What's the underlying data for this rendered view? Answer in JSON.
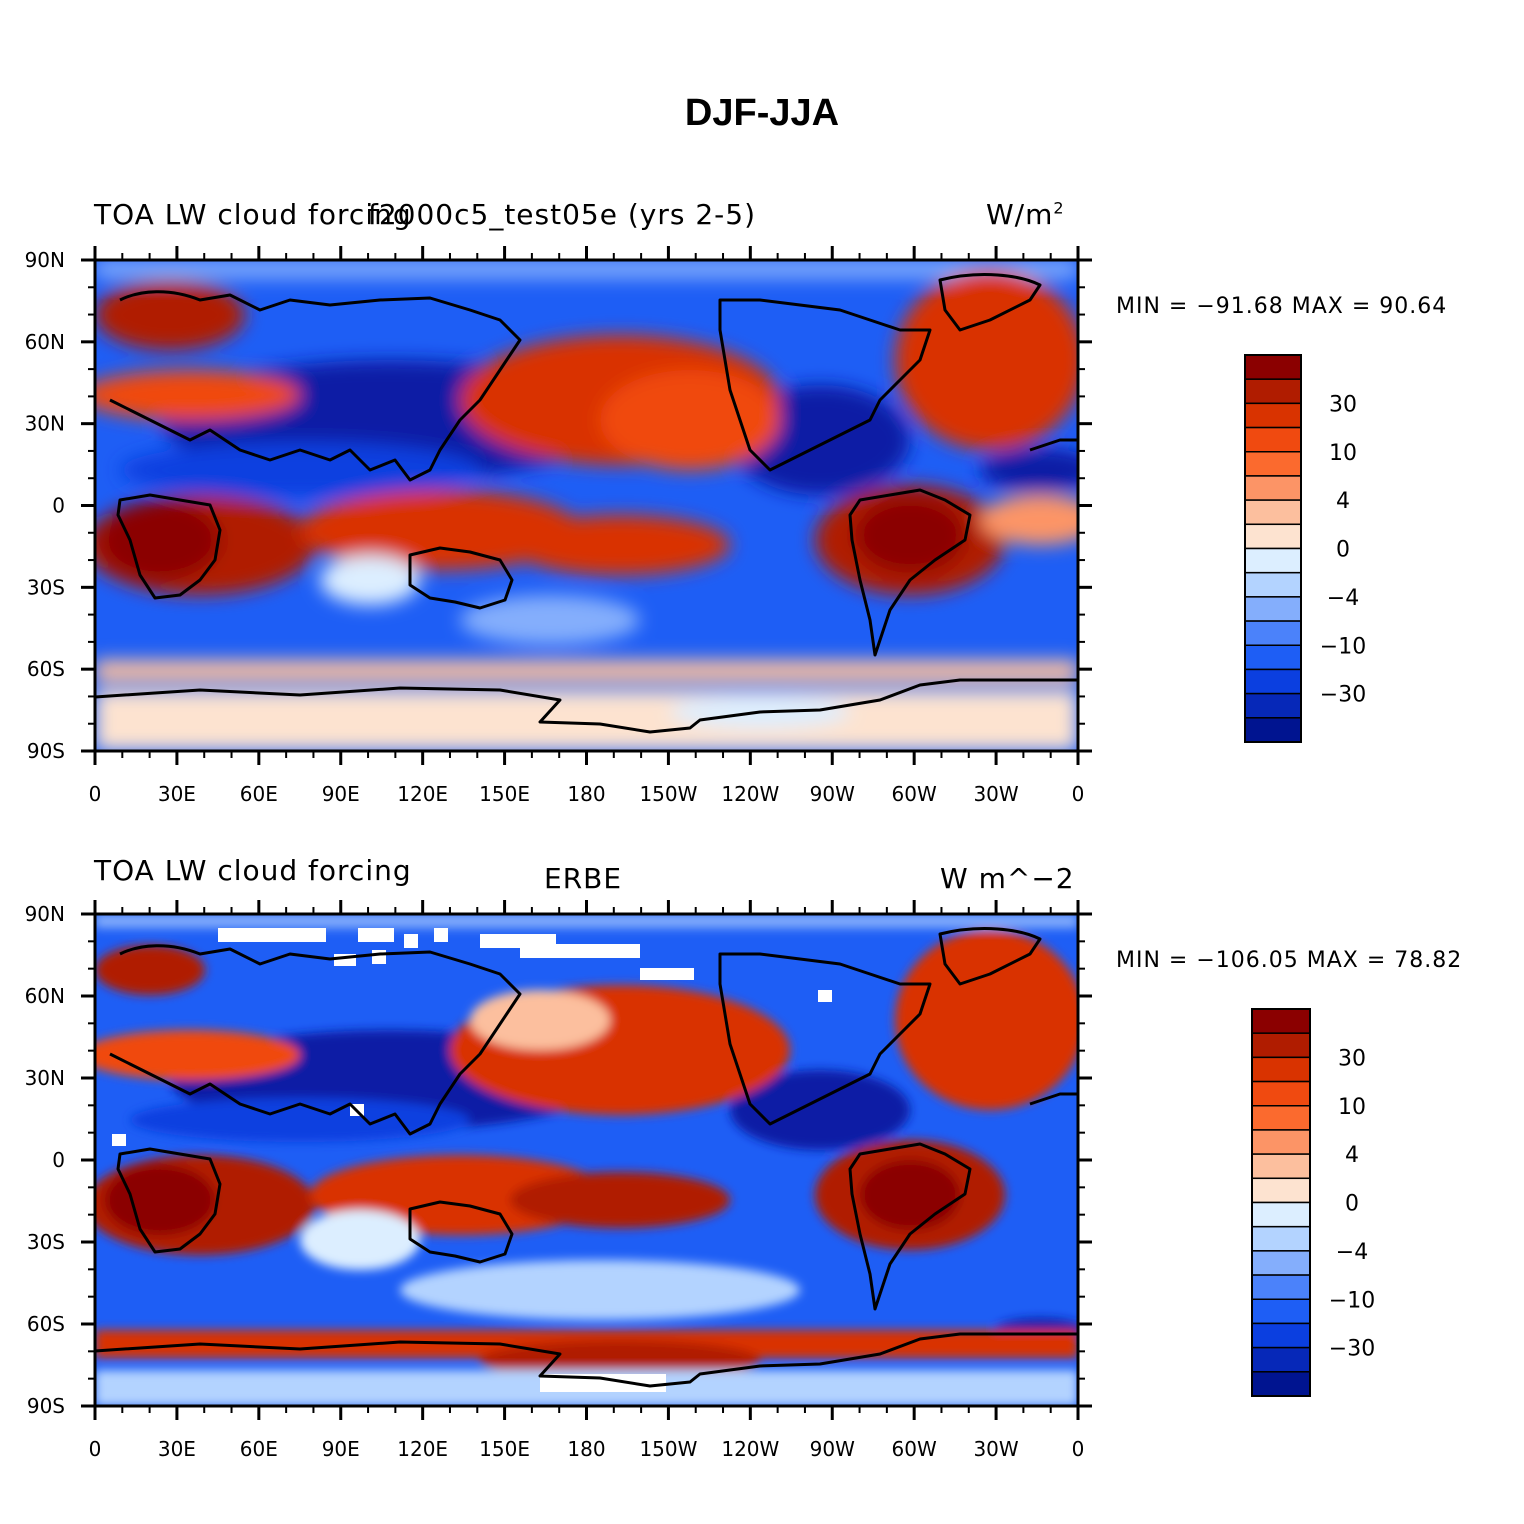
{
  "title": "DJF-JJA",
  "panels": [
    {
      "left_label": "TOA LW cloud forcing",
      "center_label": "f2000c5_test05e (yrs 2-5)",
      "units_base": "W/m",
      "units_sup": "2",
      "min_label": "MIN = −91.68 MAX =  90.64"
    },
    {
      "left_label": "TOA LW cloud forcing",
      "center_label": "ERBE",
      "units_base": "W m^−2",
      "units_sup": "",
      "min_label": "MIN = −106.05 MAX =  78.82"
    }
  ],
  "axes": {
    "lat_ticks": [
      "90N",
      "60N",
      "30N",
      "0",
      "30S",
      "60S",
      "90S"
    ],
    "lon_ticks": [
      "0",
      "30E",
      "60E",
      "90E",
      "120E",
      "150E",
      "180",
      "150W",
      "120W",
      "90W",
      "60W",
      "30W",
      "0"
    ]
  },
  "colorbar": {
    "labels": [
      "30",
      "10",
      "4",
      "0",
      "−4",
      "−10",
      "−30"
    ],
    "colors": [
      "#8b0000",
      "#b01c00",
      "#d93300",
      "#f04a10",
      "#fb6a2e",
      "#fc9466",
      "#fcbf9e",
      "#fde3d0",
      "#dceeff",
      "#b3d3ff",
      "#84aefc",
      "#4b82fa",
      "#1e5ef5",
      "#0b3fe0",
      "#0628b8",
      "#001490"
    ]
  },
  "palette": {
    "ocean_cool": "#1d4ff0",
    "warm": "#d43a0a",
    "deep_warm": "#9a1200",
    "deep_cool": "#0a1ea5",
    "neutral": "#fde3d0"
  }
}
